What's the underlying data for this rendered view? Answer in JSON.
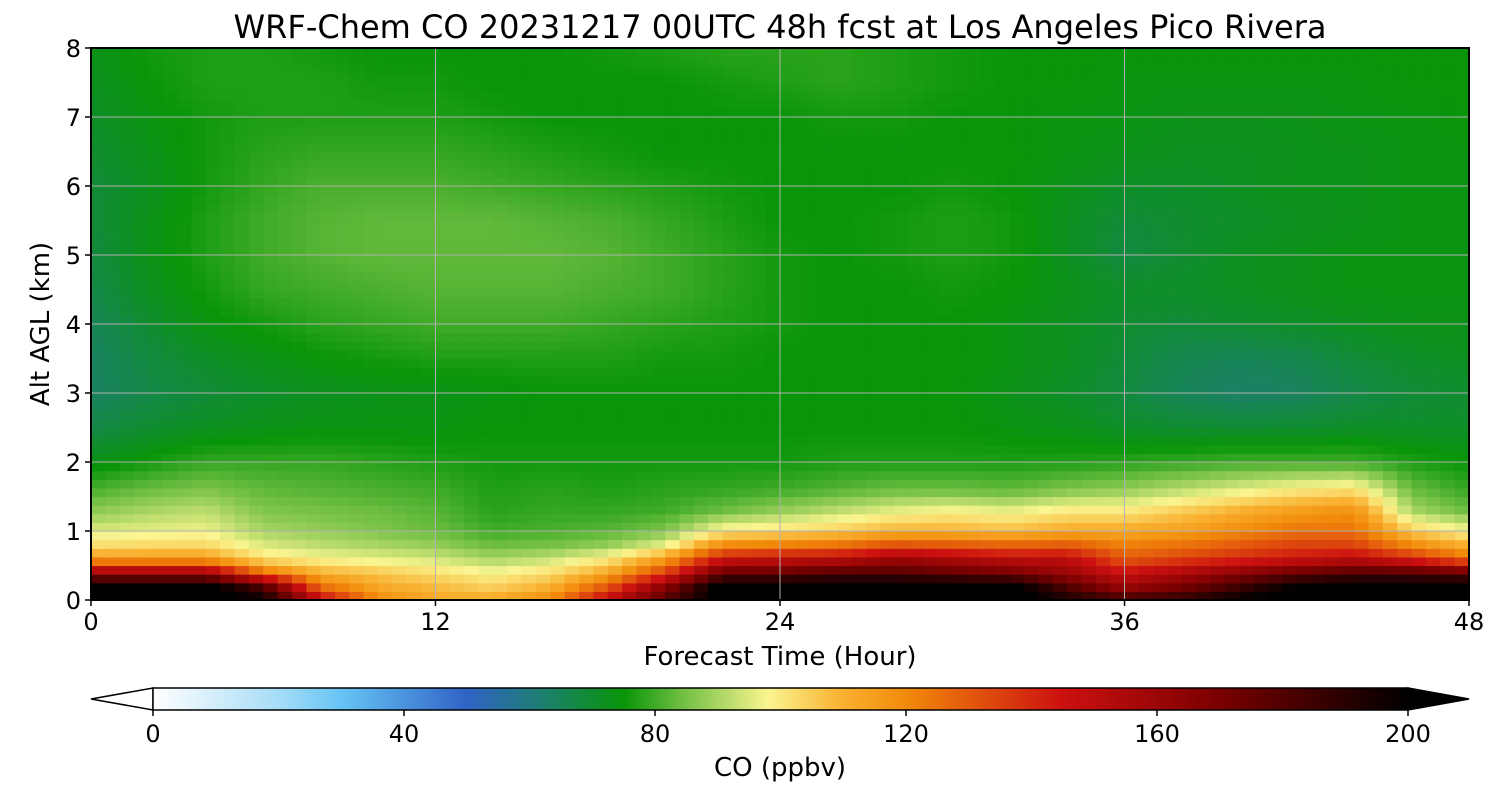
{
  "chart_data": {
    "type": "heatmap",
    "title": "WRF-Chem CO  20231217 00UTC 48h fcst at Los Angeles Pico Rivera",
    "xlabel": "Forecast Time (Hour)",
    "ylabel": "Alt AGL (km)",
    "xlim": [
      0,
      48
    ],
    "ylim": [
      0,
      8
    ],
    "x_ticks": [
      "0",
      "12",
      "24",
      "36",
      "48"
    ],
    "y_ticks": [
      "0",
      "1",
      "2",
      "3",
      "4",
      "5",
      "6",
      "7",
      "8"
    ],
    "grid": true,
    "colorbar": {
      "label": "CO  (ppbv)",
      "range": [
        0,
        200
      ],
      "ticks": [
        "0",
        "40",
        "80",
        "120",
        "160",
        "200"
      ],
      "extend": "both",
      "stops": [
        {
          "value": 0,
          "color": "#ffffff"
        },
        {
          "value": 20,
          "color": "#a6dcf6"
        },
        {
          "value": 30,
          "color": "#66c4f4"
        },
        {
          "value": 50,
          "color": "#3063c6"
        },
        {
          "value": 62,
          "color": "#1d7f70"
        },
        {
          "value": 75,
          "color": "#089508"
        },
        {
          "value": 84,
          "color": "#6cbd40"
        },
        {
          "value": 98,
          "color": "#faf590"
        },
        {
          "value": 110,
          "color": "#f9b030"
        },
        {
          "value": 120,
          "color": "#f28a0a"
        },
        {
          "value": 145,
          "color": "#cc1010"
        },
        {
          "value": 170,
          "color": "#7a0000"
        },
        {
          "value": 200,
          "color": "#000000"
        }
      ]
    },
    "hours": [
      0,
      2,
      4,
      6,
      8,
      10,
      12,
      14,
      16,
      18,
      20,
      22,
      24,
      26,
      28,
      30,
      32,
      34,
      36,
      38,
      40,
      42,
      44,
      46,
      48
    ],
    "altitudes_km": [
      0,
      0.2,
      0.4,
      0.6,
      0.8,
      1.0,
      1.3,
      1.6,
      2.0,
      2.5,
      3.0,
      3.5,
      4.0,
      4.5,
      5.0,
      5.5,
      6.0,
      6.5,
      7.0,
      7.5,
      8.0
    ],
    "co_ppbv": [
      [
        205,
        205,
        205,
        200,
        150,
        120,
        112,
        112,
        120,
        150,
        180,
        205,
        205,
        205,
        205,
        205,
        205,
        195,
        185,
        190,
        200,
        205,
        205,
        205,
        205
      ],
      [
        205,
        205,
        205,
        180,
        125,
        112,
        108,
        104,
        110,
        130,
        165,
        205,
        205,
        205,
        205,
        205,
        205,
        180,
        160,
        170,
        185,
        200,
        205,
        205,
        205
      ],
      [
        160,
        160,
        160,
        125,
        110,
        106,
        102,
        98,
        102,
        112,
        135,
        175,
        175,
        180,
        180,
        175,
        170,
        160,
        145,
        155,
        165,
        175,
        180,
        180,
        175
      ],
      [
        115,
        115,
        115,
        102,
        98,
        96,
        94,
        90,
        93,
        100,
        115,
        145,
        148,
        150,
        160,
        155,
        150,
        150,
        130,
        135,
        140,
        145,
        150,
        140,
        125
      ],
      [
        102,
        103,
        103,
        95,
        92,
        90,
        88,
        84,
        85,
        88,
        96,
        120,
        122,
        125,
        132,
        130,
        128,
        130,
        122,
        125,
        130,
        135,
        135,
        120,
        110
      ],
      [
        95,
        96,
        97,
        90,
        88,
        86,
        84,
        80,
        81,
        82,
        86,
        100,
        102,
        105,
        110,
        110,
        108,
        112,
        112,
        115,
        120,
        125,
        125,
        105,
        98
      ],
      [
        87,
        90,
        92,
        86,
        85,
        84,
        82,
        78,
        79,
        79,
        80,
        84,
        88,
        92,
        96,
        98,
        96,
        100,
        100,
        105,
        110,
        115,
        118,
        90,
        84
      ],
      [
        81,
        84,
        86,
        83,
        82,
        81,
        80,
        77,
        78,
        77,
        78,
        79,
        80,
        82,
        84,
        84,
        83,
        86,
        88,
        92,
        96,
        100,
        102,
        84,
        79
      ],
      [
        73,
        76,
        79,
        79,
        79,
        78,
        77,
        76,
        76,
        76,
        76,
        76,
        76,
        77,
        77,
        77,
        77,
        77,
        78,
        79,
        80,
        80,
        80,
        77,
        75
      ],
      [
        67,
        70,
        72,
        73,
        74,
        74,
        74,
        75,
        75,
        75,
        75,
        75,
        75,
        75,
        75,
        75,
        74,
        73,
        71,
        70,
        70,
        70,
        71,
        71,
        71
      ],
      [
        64,
        67,
        69,
        71,
        72,
        73,
        73,
        74,
        75,
        75,
        75,
        75,
        75,
        75,
        75,
        75,
        73,
        71,
        68,
        65,
        63,
        64,
        67,
        69,
        70
      ],
      [
        64,
        68,
        71,
        73,
        75,
        76,
        77,
        77,
        77,
        77,
        76,
        76,
        75,
        75,
        75,
        75,
        74,
        72,
        69,
        66,
        65,
        66,
        69,
        71,
        72
      ],
      [
        65,
        70,
        74,
        76,
        78,
        79,
        80,
        80,
        80,
        79,
        78,
        77,
        76,
        75,
        75,
        75,
        74,
        72,
        70,
        69,
        70,
        71,
        72,
        73,
        73
      ],
      [
        67,
        72,
        76,
        79,
        80,
        81,
        82,
        82,
        82,
        81,
        80,
        78,
        76,
        75,
        75,
        76,
        75,
        73,
        71,
        71,
        72,
        73,
        74,
        74,
        74
      ],
      [
        68,
        73,
        77,
        80,
        82,
        83,
        83,
        83,
        83,
        82,
        80,
        78,
        76,
        75,
        76,
        77,
        76,
        72,
        68,
        70,
        72,
        73,
        74,
        74,
        74
      ],
      [
        69,
        73,
        77,
        80,
        82,
        83,
        83,
        83,
        82,
        81,
        79,
        77,
        75,
        75,
        76,
        77,
        76,
        72,
        69,
        70,
        71,
        72,
        73,
        74,
        74
      ],
      [
        69,
        72,
        76,
        79,
        81,
        81,
        81,
        80,
        79,
        78,
        77,
        76,
        75,
        75,
        75,
        76,
        75,
        73,
        71,
        71,
        72,
        73,
        73,
        74,
        74
      ],
      [
        70,
        73,
        76,
        78,
        79,
        79,
        79,
        78,
        77,
        76,
        75,
        75,
        75,
        75,
        75,
        75,
        75,
        74,
        73,
        72,
        72,
        73,
        73,
        74,
        74
      ],
      [
        71,
        74,
        76,
        77,
        77,
        77,
        77,
        76,
        75,
        75,
        75,
        75,
        75,
        76,
        76,
        75,
        75,
        74,
        74,
        73,
        73,
        73,
        74,
        74,
        75
      ],
      [
        72,
        75,
        77,
        77,
        77,
        76,
        76,
        75,
        75,
        75,
        75,
        76,
        77,
        78,
        77,
        76,
        75,
        75,
        74,
        74,
        74,
        74,
        74,
        75,
        75
      ],
      [
        73,
        76,
        77,
        77,
        76,
        75,
        75,
        75,
        75,
        76,
        77,
        78,
        78,
        78,
        77,
        76,
        75,
        75,
        75,
        75,
        75,
        75,
        75,
        75,
        75
      ]
    ]
  }
}
